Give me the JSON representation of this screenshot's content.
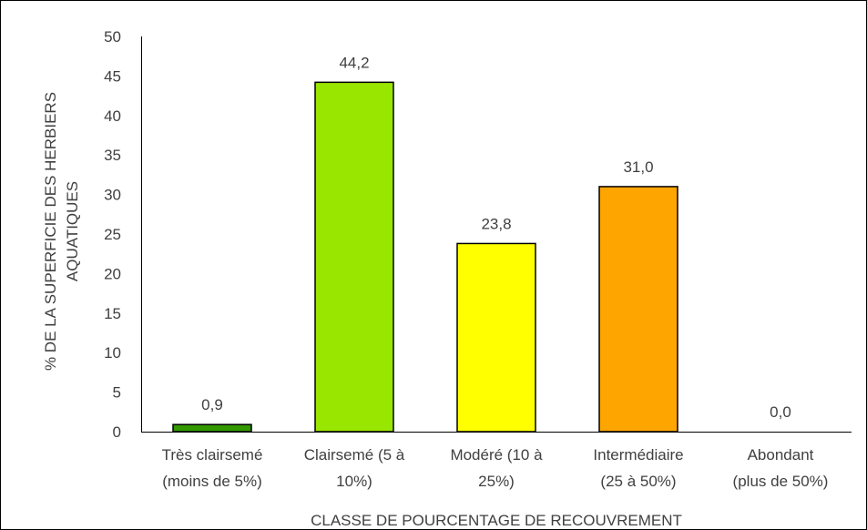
{
  "chart_data": {
    "type": "bar",
    "categories": [
      [
        "Très clairsemé",
        "(moins de 5%)"
      ],
      [
        "Clairsemé (5 à",
        "10%)"
      ],
      [
        "Modéré (10 à",
        "25%)"
      ],
      [
        "Intermédiaire",
        "(25 à 50%)"
      ],
      [
        "Abondant",
        "(plus de 50%)"
      ]
    ],
    "values": [
      0.9,
      44.2,
      23.8,
      31.0,
      0.0
    ],
    "data_labels": [
      "0,9",
      "44,2",
      "23,8",
      "31,0",
      "0,0"
    ],
    "colors": [
      "#339900",
      "#99e600",
      "#ffff00",
      "#ffa500",
      "#a6a6a6"
    ],
    "xlabel": "CLASSE DE POURCENTAGE DE RECOUVREMENT",
    "ylabel": [
      "% DE LA SUPERFICIE DES HERBIERS",
      "AQUATIQUES"
    ],
    "ylim": [
      0,
      50
    ],
    "yticks": [
      0,
      5,
      10,
      15,
      20,
      25,
      30,
      35,
      40,
      45,
      50
    ],
    "grid": false,
    "legend": "none"
  }
}
